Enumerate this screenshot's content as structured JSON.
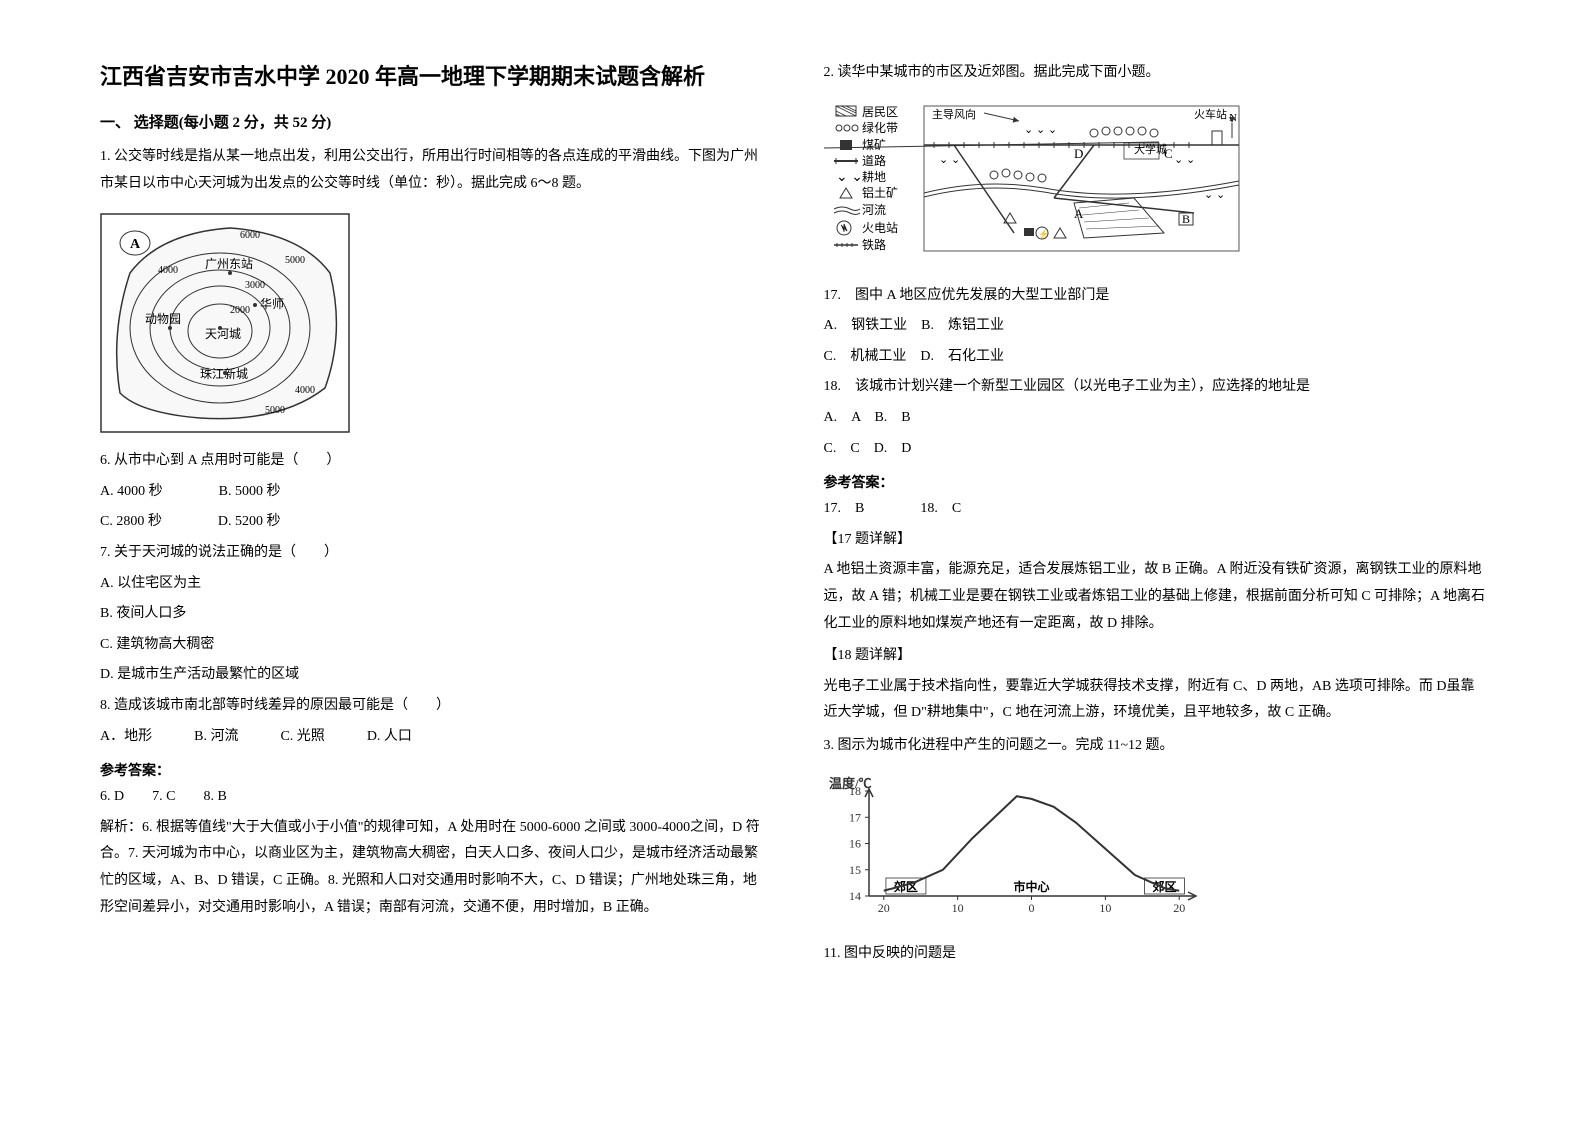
{
  "title": "江西省吉安市吉水中学 2020 年高一地理下学期期末试题含解析",
  "section_header": "一、 选择题(每小题 2 分，共 52 分)",
  "q1_intro": "1. 公交等时线是指从某一地点出发，利用公交出行，所用出行时间相等的各点连成的平滑曲线。下图为广州市某日以市中心天河城为出发点的公交等时线（单位：秒）。据此完成 6～8 题。",
  "map1": {
    "labels": {
      "guangzhou_east": "广州东站",
      "huashi": "华师",
      "tianhe": "天河城",
      "zoo": "动物园",
      "zhujiang": "珠江新城",
      "A": "A"
    },
    "contours": [
      "2000",
      "3000",
      "4000",
      "5000",
      "6000"
    ],
    "stroke_color": "#333333",
    "fill_color": "#f8f8f8",
    "text_color": "#222222"
  },
  "q6": "6. 从市中心到 A 点用时可能是（　　）",
  "q6_opts": {
    "A": "A. 4000 秒",
    "B": "B. 5000 秒",
    "C": "C. 2800 秒",
    "D": "D. 5200 秒"
  },
  "q7": "7. 关于天河城的说法正确的是（　　）",
  "q7_opts": {
    "A": "A. 以住宅区为主",
    "B": "B. 夜间人口多",
    "C": "C. 建筑物高大稠密",
    "D": "D. 是城市生产活动最繁忙的区域"
  },
  "q8": "8. 造成该城市南北部等时线差异的原因最可能是（　　）",
  "q8_opts": {
    "A": "A．地形",
    "B": "B. 河流",
    "C": "C. 光照",
    "D": "D. 人口"
  },
  "answer_header": "参考答案：",
  "answers_1": "6. D　　7. C　　8. B",
  "explain_1": "解析：6. 根据等值线\"大于大值或小于小值\"的规律可知，A 处用时在 5000-6000 之间或 3000-4000之间，D 符合。7. 天河城为市中心，以商业区为主，建筑物高大稠密，白天人口多、夜间人口少，是城市经济活动最繁忙的区域，A、B、D 错误，C 正确。8. 光照和人口对交通用时影响不大，C、D 错误；广州地处珠三角，地形空间差异小，对交通用时影响小，A 错误；南部有河流，交通不便，用时增加，B 正确。",
  "q2_intro": "2. 读华中某城市的市区及近郊图。据此完成下面小题。",
  "legend": {
    "items": [
      {
        "name": "居民区",
        "symbol": "hatch"
      },
      {
        "name": "绿化带",
        "symbol": "circles"
      },
      {
        "name": "煤矿",
        "symbol": "square"
      },
      {
        "name": "道路",
        "symbol": "road"
      },
      {
        "name": "耕地",
        "symbol": "plants"
      },
      {
        "name": "铝土矿",
        "symbol": "triangle"
      },
      {
        "name": "河流",
        "symbol": "river"
      },
      {
        "name": "火电站",
        "symbol": "power"
      },
      {
        "name": "铁路",
        "symbol": "rail"
      }
    ],
    "map_labels": {
      "wind": "主导风向",
      "station": "火车站",
      "university": "大学城",
      "A": "A",
      "B": "B",
      "C": "C",
      "D": "D",
      "N": "N"
    },
    "border_color": "#555555",
    "text_color": "#333333"
  },
  "q17": "17.　图中 A 地区应优先发展的大型工业部门是",
  "q17_opts": {
    "A": "A.　钢铁工业",
    "B": "B.　炼铝工业",
    "C": "C.　机械工业",
    "D": "D.　石化工业"
  },
  "q18": "18.　该城市计划兴建一个新型工业园区（以光电子工业为主），应选择的地址是",
  "q18_opts": {
    "A": "A.　A",
    "B": "B.　B",
    "C": "C.　C",
    "D": "D.　D"
  },
  "answers_2": "17.　B　　　　18.　C",
  "explain_17_header": "【17 题详解】",
  "explain_17": "A 地铝土资源丰富，能源充足，适合发展炼铝工业，故 B 正确。A 附近没有铁矿资源，离钢铁工业的原料地远，故 A 错；机械工业是要在钢铁工业或者炼铝工业的基础上修建，根据前面分析可知 C 可排除；A 地离石化工业的原料地如煤炭产地还有一定距离，故 D 排除。",
  "explain_18_header": "【18 题详解】",
  "explain_18": "光电子工业属于技术指向性，要靠近大学城获得技术支撑，附近有 C、D 两地，AB 选项可排除。而 D虽靠近大学城，但 D\"耕地集中\"，C 地在河流上游，环境优美，且平地较多，故 C 正确。",
  "q3_intro": "3. 图示为城市化进程中产生的问题之一。完成 11~12 题。",
  "chart": {
    "type": "line",
    "y_label": "温度/℃",
    "x_labels": [
      "郊区",
      "市中心",
      "郊区"
    ],
    "x_ticks": [
      "20",
      "10",
      "0",
      "10",
      "20"
    ],
    "y_ticks": [
      "14",
      "15",
      "16",
      "17",
      "18"
    ],
    "ylim": [
      14,
      18
    ],
    "data_points": [
      {
        "x": -20,
        "y": 14.2
      },
      {
        "x": -16,
        "y": 14.5
      },
      {
        "x": -12,
        "y": 15.0
      },
      {
        "x": -8,
        "y": 16.2
      },
      {
        "x": -5,
        "y": 17.0
      },
      {
        "x": -2,
        "y": 17.8
      },
      {
        "x": 0,
        "y": 17.7
      },
      {
        "x": 3,
        "y": 17.4
      },
      {
        "x": 6,
        "y": 16.8
      },
      {
        "x": 10,
        "y": 15.8
      },
      {
        "x": 14,
        "y": 14.8
      },
      {
        "x": 18,
        "y": 14.3
      },
      {
        "x": 20,
        "y": 14.2
      }
    ],
    "line_color": "#333333",
    "axis_color": "#333333",
    "text_color": "#333333",
    "label_fontsize": 13
  },
  "q11": "11. 图中反映的问题是"
}
